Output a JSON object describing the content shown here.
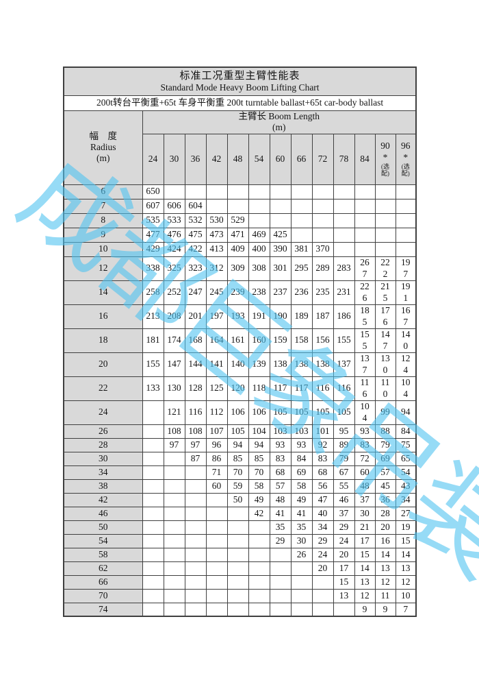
{
  "header": {
    "title_cn": "标准工况重型主臂性能表",
    "title_en": "Standard Mode Heavy Boom Lifting Chart",
    "ballast": "200t转台平衡重+65t 车身平衡重 200t turntable ballast+65t car-body ballast"
  },
  "columns": {
    "radius_label_cn": "幅　度",
    "radius_label_en": "Radius",
    "radius_unit": "(m)",
    "boom_title": "主臂长 Boom Length",
    "boom_unit": "(m)",
    "booms": [
      "24",
      "30",
      "36",
      "42",
      "48",
      "54",
      "60",
      "66",
      "72",
      "78",
      "84"
    ],
    "optional_booms": [
      {
        "label": "90",
        "mark": "*",
        "note": "(选配)"
      },
      {
        "label": "96",
        "mark": "*",
        "note": "(选配)"
      }
    ]
  },
  "table": {
    "rows": [
      {
        "radius": "6",
        "values": [
          "650",
          "",
          "",
          "",
          "",
          "",
          "",
          "",
          "",
          "",
          "",
          "",
          ""
        ]
      },
      {
        "radius": "7",
        "values": [
          "607",
          "606",
          "604",
          "",
          "",
          "",
          "",
          "",
          "",
          "",
          "",
          "",
          ""
        ]
      },
      {
        "radius": "8",
        "values": [
          "535",
          "533",
          "532",
          "530",
          "529",
          "",
          "",
          "",
          "",
          "",
          "",
          "",
          ""
        ]
      },
      {
        "radius": "9",
        "values": [
          "477",
          "476",
          "475",
          "473",
          "471",
          "469",
          "425",
          "",
          "",
          "",
          "",
          "",
          ""
        ]
      },
      {
        "radius": "10",
        "values": [
          "429",
          "424",
          "422",
          "413",
          "409",
          "400",
          "390",
          "381",
          "370",
          "",
          "",
          "",
          ""
        ]
      },
      {
        "radius": "12",
        "values": [
          "338",
          "325",
          "323",
          "312",
          "309",
          "308",
          "301",
          "295",
          "289",
          "283",
          "267",
          "222",
          "197"
        ]
      },
      {
        "radius": "14",
        "values": [
          "258",
          "252",
          "247",
          "245",
          "239",
          "238",
          "237",
          "236",
          "235",
          "231",
          "226",
          "215",
          "191"
        ]
      },
      {
        "radius": "16",
        "values": [
          "213",
          "208",
          "201",
          "197",
          "193",
          "191",
          "190",
          "189",
          "187",
          "186",
          "185",
          "176",
          "167"
        ]
      },
      {
        "radius": "18",
        "values": [
          "181",
          "174",
          "168",
          "164",
          "161",
          "160",
          "159",
          "158",
          "156",
          "155",
          "155",
          "147",
          "140"
        ]
      },
      {
        "radius": "20",
        "values": [
          "155",
          "147",
          "144",
          "141",
          "140",
          "139",
          "138",
          "138",
          "138",
          "137",
          "137",
          "130",
          "124"
        ]
      },
      {
        "radius": "22",
        "values": [
          "133",
          "130",
          "128",
          "125",
          "120",
          "118",
          "117",
          "117",
          "116",
          "116",
          "116",
          "110",
          "104"
        ]
      },
      {
        "radius": "24",
        "values": [
          "",
          "121",
          "116",
          "112",
          "106",
          "106",
          "105",
          "105",
          "105",
          "105",
          "104",
          "99",
          "94"
        ]
      },
      {
        "radius": "26",
        "values": [
          "",
          "108",
          "108",
          "107",
          "105",
          "104",
          "103",
          "103",
          "101",
          "95",
          "93",
          "88",
          "84"
        ]
      },
      {
        "radius": "28",
        "values": [
          "",
          "97",
          "97",
          "96",
          "94",
          "94",
          "93",
          "93",
          "92",
          "89",
          "83",
          "79",
          "75"
        ]
      },
      {
        "radius": "30",
        "values": [
          "",
          "",
          "87",
          "86",
          "85",
          "85",
          "83",
          "84",
          "83",
          "79",
          "72",
          "69",
          "65"
        ]
      },
      {
        "radius": "34",
        "values": [
          "",
          "",
          "",
          "71",
          "70",
          "70",
          "68",
          "69",
          "68",
          "67",
          "60",
          "57",
          "54"
        ]
      },
      {
        "radius": "38",
        "values": [
          "",
          "",
          "",
          "60",
          "59",
          "58",
          "57",
          "58",
          "56",
          "55",
          "48",
          "45",
          "43"
        ]
      },
      {
        "radius": "42",
        "values": [
          "",
          "",
          "",
          "",
          "50",
          "49",
          "48",
          "49",
          "47",
          "46",
          "37",
          "36",
          "34"
        ]
      },
      {
        "radius": "46",
        "values": [
          "",
          "",
          "",
          "",
          "",
          "42",
          "41",
          "41",
          "40",
          "37",
          "30",
          "28",
          "27"
        ]
      },
      {
        "radius": "50",
        "values": [
          "",
          "",
          "",
          "",
          "",
          "",
          "35",
          "35",
          "34",
          "29",
          "21",
          "20",
          "19"
        ]
      },
      {
        "radius": "54",
        "values": [
          "",
          "",
          "",
          "",
          "",
          "",
          "29",
          "30",
          "29",
          "24",
          "17",
          "16",
          "15"
        ]
      },
      {
        "radius": "58",
        "values": [
          "",
          "",
          "",
          "",
          "",
          "",
          "",
          "26",
          "24",
          "20",
          "15",
          "14",
          "14"
        ]
      },
      {
        "radius": "62",
        "values": [
          "",
          "",
          "",
          "",
          "",
          "",
          "",
          "",
          "20",
          "17",
          "14",
          "13",
          "13"
        ]
      },
      {
        "radius": "66",
        "values": [
          "",
          "",
          "",
          "",
          "",
          "",
          "",
          "",
          "",
          "15",
          "13",
          "12",
          "12"
        ]
      },
      {
        "radius": "70",
        "values": [
          "",
          "",
          "",
          "",
          "",
          "",
          "",
          "",
          "",
          "13",
          "12",
          "11",
          "10"
        ]
      },
      {
        "radius": "74",
        "values": [
          "",
          "",
          "",
          "",
          "",
          "",
          "",
          "",
          "",
          "",
          "9",
          "9",
          "7"
        ]
      }
    ]
  },
  "watermark": {
    "text": "成都巨象吊装"
  },
  "colors": {
    "header_fill": "#d9d9d9",
    "border": "#3f3f3f",
    "watermark_blue": "#50c3f0"
  }
}
